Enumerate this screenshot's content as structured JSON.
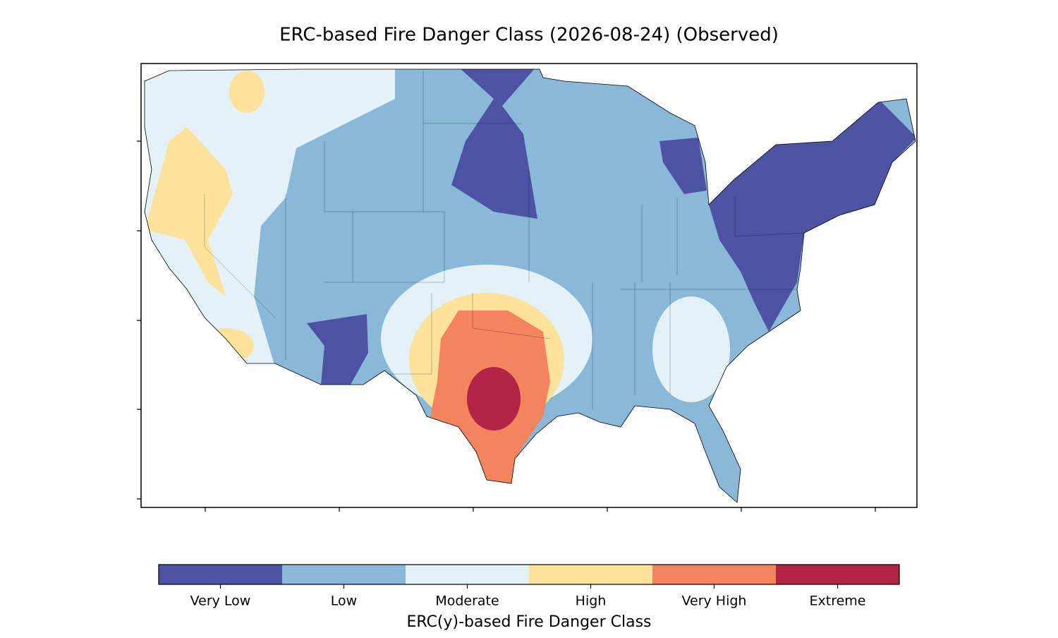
{
  "title": "ERC-based Fire Danger Class (2026-08-24) (Observed)",
  "colorbar": {
    "label": "ERC(y)-based Fire Danger Class",
    "classes": [
      {
        "label": "Very Low",
        "color": "#4e52a3"
      },
      {
        "label": "Low",
        "color": "#89b8d8"
      },
      {
        "label": "Moderate",
        "color": "#e4f2f8"
      },
      {
        "label": "High",
        "color": "#fde29c"
      },
      {
        "label": "Very High",
        "color": "#f3845d"
      },
      {
        "label": "Extreme",
        "color": "#b22445"
      }
    ]
  }
}
